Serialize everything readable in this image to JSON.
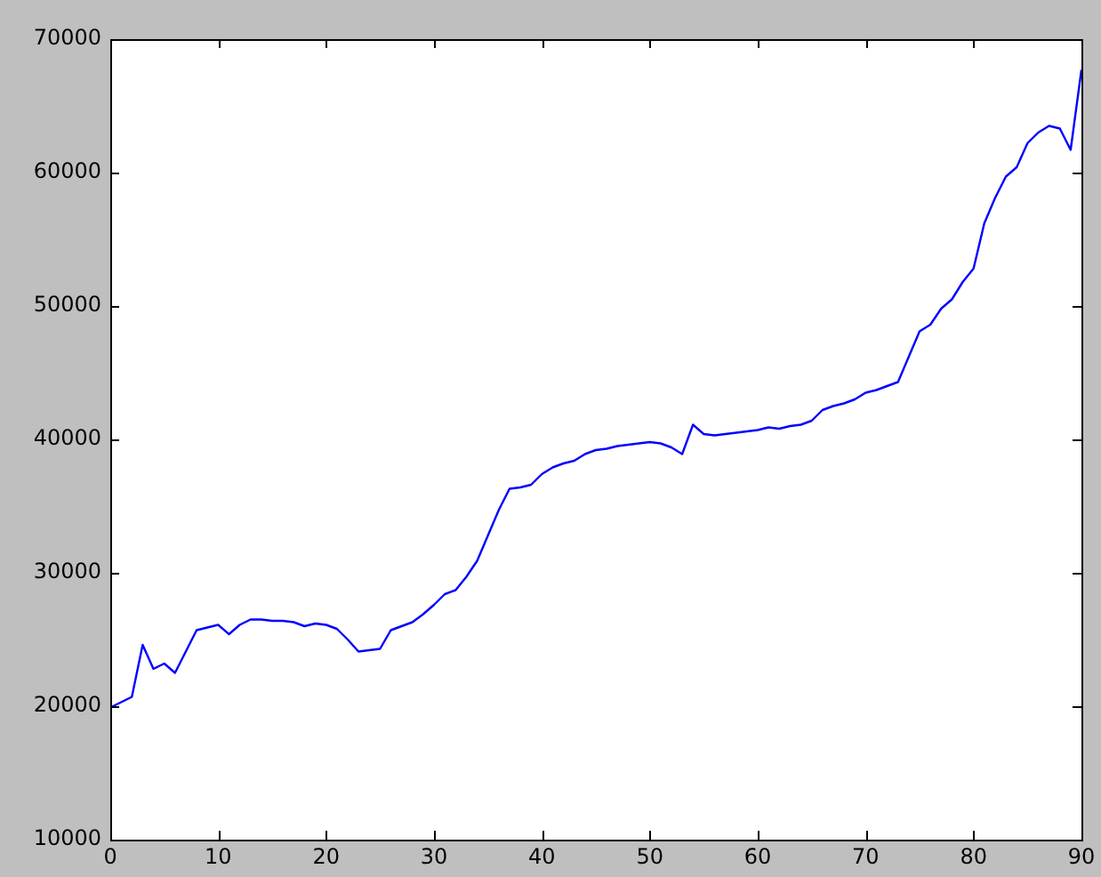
{
  "chart_data": {
    "type": "line",
    "color": "#0000ff",
    "x": [
      0,
      1,
      2,
      3,
      4,
      5,
      6,
      7,
      8,
      9,
      10,
      11,
      12,
      13,
      14,
      15,
      16,
      17,
      18,
      19,
      20,
      21,
      22,
      23,
      24,
      25,
      26,
      27,
      28,
      29,
      30,
      31,
      32,
      33,
      34,
      35,
      36,
      37,
      38,
      39,
      40,
      41,
      42,
      43,
      44,
      45,
      46,
      47,
      48,
      49,
      50,
      51,
      52,
      53,
      54,
      55,
      56,
      57,
      58,
      59,
      60,
      61,
      62,
      63,
      64,
      65,
      66,
      67,
      68,
      69,
      70,
      71,
      72,
      73,
      74,
      75,
      76,
      77,
      78,
      79,
      80,
      81,
      82,
      83,
      84,
      85,
      86,
      87,
      88,
      89,
      90
    ],
    "values": [
      19900,
      20300,
      20700,
      24600,
      22800,
      23200,
      22500,
      24100,
      25700,
      25900,
      26100,
      25400,
      26100,
      26500,
      26500,
      26400,
      26400,
      26300,
      26000,
      26200,
      26100,
      25800,
      25000,
      24100,
      24200,
      24300,
      25700,
      26000,
      26300,
      26900,
      27600,
      28400,
      28700,
      29700,
      30900,
      32800,
      34700,
      36300,
      36400,
      36600,
      37400,
      37900,
      38200,
      38400,
      38900,
      39200,
      39300,
      39500,
      39600,
      39700,
      39800,
      39700,
      39400,
      38900,
      41100,
      40400,
      40300,
      40400,
      40500,
      40600,
      40700,
      40900,
      40800,
      41000,
      41100,
      41400,
      42200,
      42500,
      42700,
      43000,
      43500,
      43700,
      44000,
      44300,
      46200,
      48100,
      48600,
      49800,
      50500,
      51800,
      52800,
      56200,
      58100,
      59700,
      60400,
      62200,
      63000,
      63500,
      63300,
      61700,
      67700
    ],
    "xlim": [
      0,
      90
    ],
    "xticks": [
      0,
      10,
      20,
      30,
      40,
      50,
      60,
      70,
      80,
      90
    ],
    "ylim": [
      10000,
      70000
    ],
    "yticks": [
      10000,
      20000,
      30000,
      40000,
      50000,
      60000,
      70000
    ]
  }
}
